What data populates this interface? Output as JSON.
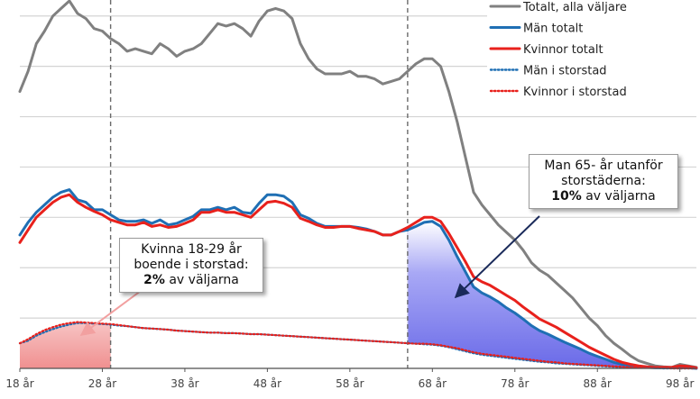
{
  "chart_data": {
    "type": "line",
    "x": [
      18,
      19,
      20,
      21,
      22,
      23,
      24,
      25,
      26,
      27,
      28,
      29,
      30,
      31,
      32,
      33,
      34,
      35,
      36,
      37,
      38,
      39,
      40,
      41,
      42,
      43,
      44,
      45,
      46,
      47,
      48,
      49,
      50,
      51,
      52,
      53,
      54,
      55,
      56,
      57,
      58,
      59,
      60,
      61,
      62,
      63,
      64,
      65,
      66,
      67,
      68,
      69,
      70,
      71,
      72,
      73,
      74,
      75,
      76,
      77,
      78,
      79,
      80,
      81,
      82,
      83,
      84,
      85,
      86,
      87,
      88,
      89,
      90,
      91,
      92,
      93,
      94,
      95,
      96,
      97,
      98,
      99,
      100
    ],
    "xlim": [
      18,
      100
    ],
    "ylim": [
      0,
      7.3
    ],
    "grid": true,
    "x_ticks": [
      18,
      28,
      38,
      48,
      58,
      68,
      78,
      88,
      98
    ],
    "x_tick_labels": [
      "18 år",
      "28 år",
      "38 år",
      "48 år",
      "58 år",
      "68 år",
      "78 år",
      "88 år",
      "98 år"
    ],
    "vertical_markers": [
      29,
      65
    ],
    "series": [
      {
        "name": "Totalt, alla väljare",
        "color": "#808080",
        "style": "solid",
        "values": [
          5.5,
          5.9,
          6.45,
          6.7,
          7.0,
          7.15,
          7.3,
          7.05,
          6.95,
          6.75,
          6.7,
          6.55,
          6.45,
          6.3,
          6.35,
          6.3,
          6.25,
          6.45,
          6.35,
          6.2,
          6.3,
          6.35,
          6.45,
          6.65,
          6.85,
          6.8,
          6.85,
          6.75,
          6.6,
          6.9,
          7.1,
          7.15,
          7.1,
          6.95,
          6.45,
          6.15,
          5.95,
          5.85,
          5.85,
          5.85,
          5.9,
          5.8,
          5.8,
          5.75,
          5.65,
          5.7,
          5.75,
          5.9,
          6.05,
          6.15,
          6.15,
          6.0,
          5.5,
          4.9,
          4.2,
          3.5,
          3.25,
          3.05,
          2.85,
          2.7,
          2.55,
          2.35,
          2.1,
          1.95,
          1.85,
          1.7,
          1.55,
          1.4,
          1.2,
          1.0,
          0.85,
          0.65,
          0.5,
          0.38,
          0.25,
          0.15,
          0.1,
          0.05,
          0.03,
          0.02,
          0.08,
          0.05,
          0.02
        ]
      },
      {
        "name": "Män totalt",
        "color": "#1f6fb4",
        "style": "solid",
        "values": [
          2.65,
          2.9,
          3.1,
          3.25,
          3.4,
          3.5,
          3.55,
          3.35,
          3.3,
          3.15,
          3.15,
          3.05,
          2.95,
          2.92,
          2.92,
          2.95,
          2.88,
          2.95,
          2.85,
          2.88,
          2.95,
          3.02,
          3.15,
          3.15,
          3.2,
          3.15,
          3.2,
          3.1,
          3.08,
          3.28,
          3.45,
          3.45,
          3.42,
          3.3,
          3.05,
          2.98,
          2.88,
          2.82,
          2.82,
          2.82,
          2.82,
          2.8,
          2.77,
          2.72,
          2.65,
          2.65,
          2.72,
          2.75,
          2.82,
          2.9,
          2.92,
          2.82,
          2.55,
          2.22,
          1.92,
          1.62,
          1.5,
          1.42,
          1.32,
          1.2,
          1.1,
          0.98,
          0.85,
          0.75,
          0.68,
          0.6,
          0.52,
          0.45,
          0.38,
          0.3,
          0.24,
          0.18,
          0.12,
          0.08,
          0.06,
          0.04,
          0.02,
          0.01,
          0.01,
          0.01,
          0.02,
          0.01,
          0.0
        ]
      },
      {
        "name": "Kvinnor totalt",
        "color": "#e8211c",
        "style": "solid",
        "values": [
          2.5,
          2.75,
          3.0,
          3.15,
          3.3,
          3.4,
          3.45,
          3.3,
          3.2,
          3.12,
          3.05,
          2.95,
          2.9,
          2.85,
          2.85,
          2.9,
          2.82,
          2.85,
          2.8,
          2.82,
          2.88,
          2.95,
          3.1,
          3.1,
          3.15,
          3.1,
          3.1,
          3.05,
          3.0,
          3.15,
          3.3,
          3.32,
          3.28,
          3.2,
          2.98,
          2.92,
          2.85,
          2.8,
          2.8,
          2.82,
          2.82,
          2.78,
          2.75,
          2.72,
          2.65,
          2.65,
          2.72,
          2.8,
          2.9,
          3.0,
          3.0,
          2.92,
          2.68,
          2.4,
          2.12,
          1.82,
          1.72,
          1.65,
          1.55,
          1.45,
          1.35,
          1.22,
          1.1,
          0.98,
          0.9,
          0.82,
          0.72,
          0.62,
          0.52,
          0.42,
          0.34,
          0.26,
          0.18,
          0.12,
          0.08,
          0.05,
          0.03,
          0.02,
          0.02,
          0.02,
          0.05,
          0.04,
          0.01
        ]
      },
      {
        "name": "Män i storstad",
        "color": "#1f6fb4",
        "style": "dotted",
        "values": [
          0.5,
          0.55,
          0.65,
          0.72,
          0.78,
          0.83,
          0.87,
          0.9,
          0.9,
          0.89,
          0.88,
          0.87,
          0.85,
          0.84,
          0.82,
          0.8,
          0.79,
          0.78,
          0.77,
          0.75,
          0.74,
          0.73,
          0.72,
          0.71,
          0.71,
          0.7,
          0.7,
          0.69,
          0.68,
          0.68,
          0.67,
          0.66,
          0.65,
          0.64,
          0.63,
          0.62,
          0.61,
          0.6,
          0.59,
          0.58,
          0.57,
          0.56,
          0.55,
          0.54,
          0.53,
          0.52,
          0.51,
          0.5,
          0.49,
          0.48,
          0.47,
          0.45,
          0.42,
          0.38,
          0.34,
          0.3,
          0.27,
          0.25,
          0.23,
          0.21,
          0.19,
          0.17,
          0.15,
          0.13,
          0.12,
          0.1,
          0.09,
          0.08,
          0.07,
          0.06,
          0.05,
          0.04,
          0.03,
          0.02,
          0.02,
          0.01,
          0.01,
          0.01,
          0.0,
          0.0,
          0.0,
          0.0,
          0.0
        ]
      },
      {
        "name": "Kvinnor i storstad",
        "color": "#e8211c",
        "style": "dotted",
        "values": [
          0.5,
          0.58,
          0.68,
          0.76,
          0.82,
          0.87,
          0.9,
          0.92,
          0.91,
          0.9,
          0.89,
          0.88,
          0.86,
          0.84,
          0.82,
          0.8,
          0.79,
          0.78,
          0.77,
          0.75,
          0.74,
          0.73,
          0.72,
          0.71,
          0.71,
          0.7,
          0.7,
          0.69,
          0.68,
          0.68,
          0.67,
          0.66,
          0.65,
          0.64,
          0.63,
          0.62,
          0.61,
          0.6,
          0.59,
          0.58,
          0.57,
          0.56,
          0.55,
          0.54,
          0.53,
          0.52,
          0.51,
          0.5,
          0.49,
          0.49,
          0.48,
          0.46,
          0.43,
          0.4,
          0.36,
          0.32,
          0.29,
          0.27,
          0.25,
          0.23,
          0.21,
          0.19,
          0.17,
          0.15,
          0.13,
          0.12,
          0.1,
          0.09,
          0.08,
          0.07,
          0.06,
          0.05,
          0.04,
          0.03,
          0.02,
          0.02,
          0.01,
          0.01,
          0.01,
          0.0,
          0.0,
          0.0,
          0.0
        ]
      }
    ],
    "shaded_regions": [
      {
        "label": "Kvinna 18-29 år boende i storstad",
        "x_from": 18,
        "x_to": 29,
        "color": "#f2a6a6",
        "under_series": "Kvinnor i storstad"
      },
      {
        "label": "Man 65- år utanför storstäderna",
        "x_from": 65,
        "x_to": 100,
        "color": "#8f8ff0",
        "upper_series": "Män totalt",
        "lower_series": "Män i storstad"
      }
    ]
  },
  "annotations": {
    "women_box": {
      "line1": "Kvinna 18-29 år",
      "line2": "boende i storstad:",
      "bold": "2%",
      "rest": " av väljarna"
    },
    "men_box": {
      "line1": "Man 65- år utanför",
      "line2": "storstäderna:",
      "bold": "10%",
      "rest": " av väljarna"
    }
  }
}
